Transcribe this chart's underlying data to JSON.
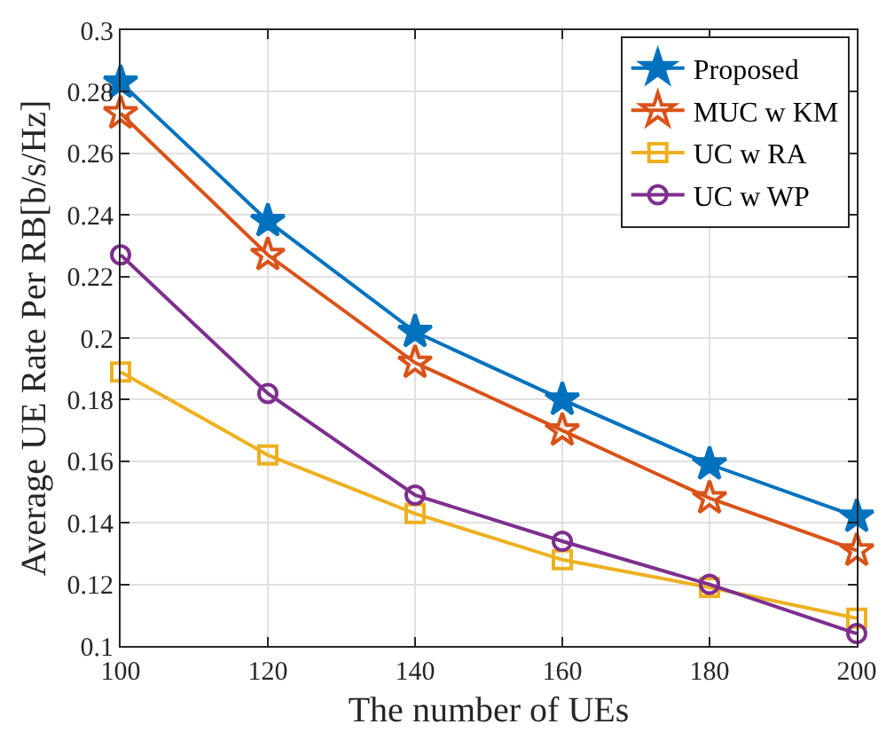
{
  "chart_data": {
    "type": "line",
    "xlabel": "The number of UEs",
    "ylabel": "Average UE Rate Per RB[b/s/Hz]",
    "x": [
      100,
      120,
      140,
      160,
      180,
      200
    ],
    "series": [
      {
        "name": "Proposed",
        "color": "#0072bd",
        "marker": "star",
        "values": [
          0.283,
          0.238,
          0.202,
          0.18,
          0.159,
          0.142
        ]
      },
      {
        "name": "MUC w KM",
        "color": "#d95319",
        "marker": "star",
        "values": [
          0.273,
          0.227,
          0.192,
          0.17,
          0.148,
          0.131
        ]
      },
      {
        "name": "UC w RA",
        "color": "#edb120",
        "marker": "square",
        "values": [
          0.189,
          0.162,
          0.143,
          0.128,
          0.119,
          0.109
        ]
      },
      {
        "name": "UC w WP",
        "color": "#7e2f8e",
        "marker": "circle",
        "values": [
          0.227,
          0.182,
          0.149,
          0.134,
          0.12,
          0.104
        ]
      }
    ],
    "xlim": [
      100,
      200
    ],
    "xticks": [
      100,
      120,
      140,
      160,
      180,
      200
    ],
    "ylim": [
      0.1,
      0.3
    ],
    "yticks": [
      0.1,
      0.12,
      0.14,
      0.16,
      0.18,
      0.2,
      0.22,
      0.24,
      0.26,
      0.28,
      0.3
    ],
    "grid": true,
    "legend": "top right",
    "line_style": "solid"
  }
}
